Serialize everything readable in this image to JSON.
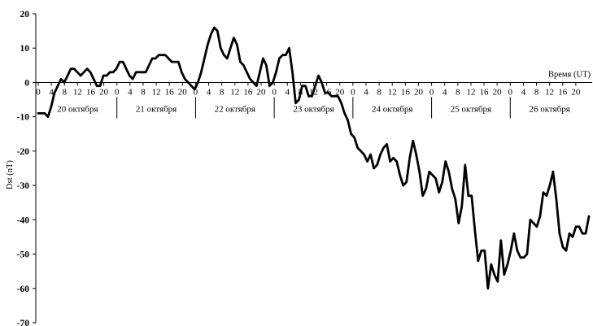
{
  "chart_data": {
    "type": "line",
    "title": "",
    "xlabel": "Время (UT)",
    "ylabel": "Dst (nT)",
    "ylim": [
      -70,
      20
    ],
    "y_ticks": [
      20,
      10,
      0,
      -10,
      -20,
      -30,
      -40,
      -50,
      -60,
      -70
    ],
    "x_unit": "hours since 20 Oct 00 UT",
    "x_tick_step_hours": 4,
    "x_tick_labels": [
      "0",
      "4",
      "8",
      "12",
      "16",
      "20"
    ],
    "grid": false,
    "days": [
      "20 октября",
      "21 октября",
      "22 октября",
      "23 октября",
      "24 октября",
      "25 октября",
      "26 октября"
    ],
    "series": [
      {
        "color": "#000000",
        "values": [
          -9,
          -9,
          -9,
          -10,
          -7,
          -3,
          -1,
          1,
          0,
          2,
          4,
          4,
          3,
          2,
          3,
          4,
          3,
          1,
          -1,
          -1,
          2,
          2,
          3,
          3,
          4,
          6,
          6,
          4,
          2,
          1,
          3,
          3,
          3,
          3,
          5,
          7,
          7,
          8,
          8,
          8,
          7,
          6,
          6,
          6,
          3,
          1,
          0,
          -1,
          -2,
          0,
          3,
          7,
          11,
          14,
          16,
          15,
          10,
          8,
          7,
          10,
          13,
          11,
          6,
          5,
          3,
          1,
          0,
          -1,
          3,
          7,
          5,
          -1,
          0,
          3,
          7,
          8,
          8,
          10,
          3,
          -6,
          -5,
          -1,
          -1,
          -4,
          -4,
          -1,
          2,
          0,
          -3,
          -3,
          -4,
          -4,
          -4,
          -6,
          -9,
          -11,
          -15,
          -16,
          -19,
          -20,
          -21,
          -23,
          -21,
          -25,
          -24,
          -21,
          -19,
          -18,
          -23,
          -22,
          -23,
          -27,
          -30,
          -29,
          -22,
          -17,
          -21,
          -26,
          -33,
          -31,
          -26,
          -27,
          -28,
          -32,
          -29,
          -23,
          -26,
          -31,
          -34,
          -41,
          -36,
          -24,
          -33,
          -33,
          -43,
          -52,
          -49,
          -49,
          -60,
          -53,
          -56,
          -58,
          -46,
          -56,
          -53,
          -49,
          -44,
          -49,
          -51,
          -51,
          -50,
          -40,
          -41,
          -42,
          -39,
          -32,
          -33,
          -30,
          -26,
          -34,
          -44,
          -48,
          -49,
          -44,
          -45,
          -42,
          -42,
          -44,
          -44,
          -39
        ]
      }
    ]
  }
}
